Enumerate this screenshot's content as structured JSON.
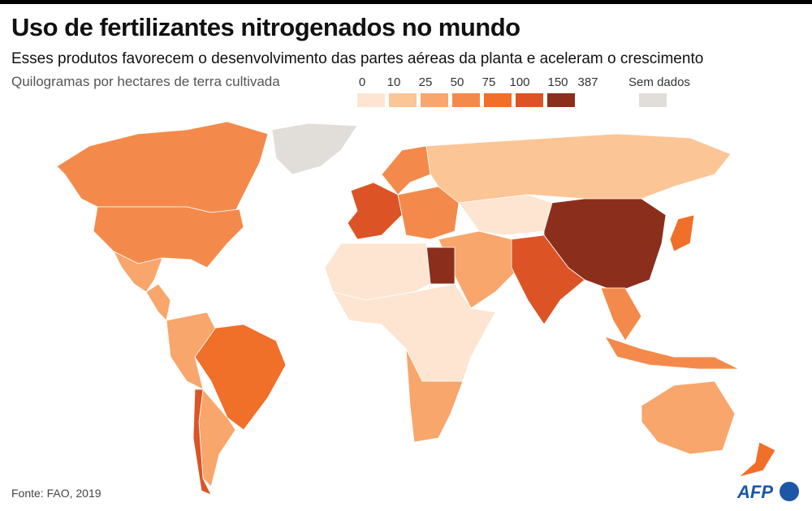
{
  "title": "Uso de fertilizantes nitrogenados no mundo",
  "subtitle": "Esses produtos favorecem o desenvolvimento das partes aéreas da planta e aceleram o crescimento",
  "unit_label": "Quilogramas por hectares de terra cultivada",
  "legend": {
    "breaks": [
      "0",
      "10",
      "25",
      "50",
      "75",
      "100",
      "150",
      "387"
    ],
    "colors": [
      "#fde5d2",
      "#fcc596",
      "#f8a66b",
      "#f38a4b",
      "#f06f29",
      "#dc5426",
      "#8b2f1c"
    ],
    "no_data_label": "Sem dados",
    "no_data_color": "#e1ddd8"
  },
  "source": "Fonte: FAO, 2019",
  "logo": "AFP",
  "regions": [
    {
      "name": "canada",
      "class": 3
    },
    {
      "name": "usa",
      "class": 3
    },
    {
      "name": "mexico",
      "class": 2
    },
    {
      "name": "central-america",
      "class": 2
    },
    {
      "name": "greenland",
      "class": "no-data"
    },
    {
      "name": "brazil",
      "class": 4
    },
    {
      "name": "andes",
      "class": 2
    },
    {
      "name": "argentina",
      "class": 2
    },
    {
      "name": "chile",
      "class": 5
    },
    {
      "name": "western-europe",
      "class": 5
    },
    {
      "name": "eastern-europe",
      "class": 3
    },
    {
      "name": "scandinavia",
      "class": 3
    },
    {
      "name": "russia",
      "class": 1
    },
    {
      "name": "central-asia",
      "class": 0
    },
    {
      "name": "middle-east",
      "class": 2
    },
    {
      "name": "egypt",
      "class": 6
    },
    {
      "name": "north-africa",
      "class": 0
    },
    {
      "name": "sub-saharan-africa",
      "class": 0
    },
    {
      "name": "southern-africa",
      "class": 2
    },
    {
      "name": "india",
      "class": 5
    },
    {
      "name": "china",
      "class": 6
    },
    {
      "name": "southeast-asia",
      "class": 3
    },
    {
      "name": "japan",
      "class": 4
    },
    {
      "name": "indonesia",
      "class": 3
    },
    {
      "name": "australia",
      "class": 2
    },
    {
      "name": "new-zealand",
      "class": 4
    }
  ]
}
